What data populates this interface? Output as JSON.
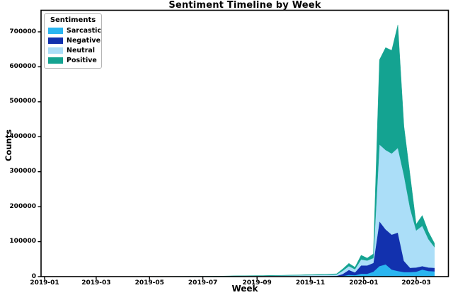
{
  "chart_data": {
    "type": "area",
    "stacked": true,
    "title": "Sentiment Timeline by Week",
    "xlabel": "Week",
    "ylabel": "Counts",
    "legend_title": "Sentiments",
    "legend_position": "upper left",
    "grid": false,
    "ylim": [
      0,
      760000
    ],
    "ytick_values": [
      0,
      100000,
      200000,
      300000,
      400000,
      500000,
      600000,
      700000
    ],
    "ytick_labels": [
      "0",
      "100000",
      "200000",
      "300000",
      "400000",
      "500000",
      "600000",
      "700000"
    ],
    "xtick_labels": [
      "2019-01",
      "2019-03",
      "2019-05",
      "2019-07",
      "2019-09",
      "2019-11",
      "2020-01",
      "2020-03"
    ],
    "weeks": [
      "2019-01-06",
      "2019-01-13",
      "2019-01-20",
      "2019-01-27",
      "2019-02-03",
      "2019-02-10",
      "2019-02-17",
      "2019-02-24",
      "2019-03-03",
      "2019-03-10",
      "2019-03-17",
      "2019-03-24",
      "2019-03-31",
      "2019-04-07",
      "2019-04-14",
      "2019-04-21",
      "2019-04-28",
      "2019-05-05",
      "2019-05-12",
      "2019-05-19",
      "2019-05-26",
      "2019-06-02",
      "2019-06-09",
      "2019-06-16",
      "2019-06-23",
      "2019-06-30",
      "2019-07-07",
      "2019-07-14",
      "2019-07-21",
      "2019-07-28",
      "2019-08-04",
      "2019-08-11",
      "2019-08-18",
      "2019-08-25",
      "2019-09-01",
      "2019-09-08",
      "2019-09-15",
      "2019-09-22",
      "2019-09-29",
      "2019-10-06",
      "2019-10-13",
      "2019-10-20",
      "2019-10-27",
      "2019-11-03",
      "2019-11-10",
      "2019-11-17",
      "2019-11-24",
      "2019-12-01",
      "2019-12-08",
      "2019-12-15",
      "2019-12-22",
      "2019-12-29",
      "2020-01-05",
      "2020-01-12",
      "2020-01-19",
      "2020-01-26",
      "2020-02-02",
      "2020-02-09",
      "2020-02-16",
      "2020-02-23",
      "2020-03-01",
      "2020-03-08",
      "2020-03-15",
      "2020-03-22"
    ],
    "series": [
      {
        "name": "Sarcastic",
        "color": "#2ab5f0",
        "values": [
          0,
          0,
          0,
          0,
          0,
          0,
          0,
          0,
          0,
          0,
          0,
          0,
          0,
          0,
          50,
          50,
          50,
          50,
          50,
          50,
          50,
          50,
          50,
          50,
          50,
          50,
          50,
          100,
          100,
          100,
          150,
          150,
          150,
          200,
          200,
          200,
          250,
          250,
          300,
          300,
          350,
          350,
          400,
          400,
          450,
          500,
          550,
          600,
          1500,
          5000,
          4000,
          8000,
          8000,
          14000,
          30000,
          35000,
          20000,
          16000,
          13000,
          13000,
          14000,
          20000,
          16000,
          15000
        ]
      },
      {
        "name": "Negative",
        "color": "#1231ae",
        "values": [
          0,
          0,
          0,
          0,
          50,
          50,
          50,
          50,
          50,
          50,
          50,
          50,
          50,
          50,
          50,
          50,
          50,
          100,
          100,
          100,
          100,
          100,
          100,
          100,
          150,
          150,
          150,
          200,
          250,
          300,
          350,
          400,
          400,
          450,
          500,
          500,
          550,
          600,
          650,
          700,
          750,
          800,
          900,
          1000,
          1100,
          1200,
          1300,
          1500,
          6000,
          14000,
          8000,
          24000,
          24000,
          25000,
          128000,
          100000,
          100000,
          110000,
          32000,
          12000,
          12000,
          10000,
          10000,
          10000
        ]
      },
      {
        "name": "Neutral",
        "color": "#abdef8",
        "values": [
          100,
          100,
          100,
          100,
          150,
          150,
          150,
          150,
          200,
          200,
          200,
          200,
          250,
          250,
          250,
          250,
          300,
          300,
          300,
          350,
          350,
          400,
          400,
          450,
          450,
          500,
          550,
          600,
          800,
          1000,
          1200,
          1300,
          1400,
          1500,
          1600,
          1700,
          1800,
          1900,
          2000,
          2200,
          2400,
          2600,
          2800,
          3000,
          3200,
          3400,
          3700,
          4000,
          9000,
          11000,
          9000,
          17000,
          14000,
          14000,
          220000,
          227000,
          232000,
          242000,
          245000,
          170000,
          106000,
          115000,
          81000,
          59000
        ]
      },
      {
        "name": "Positive",
        "color": "#14a391",
        "values": [
          0,
          0,
          50,
          50,
          50,
          50,
          50,
          50,
          50,
          100,
          100,
          100,
          100,
          100,
          100,
          100,
          100,
          100,
          100,
          100,
          150,
          150,
          150,
          150,
          200,
          200,
          250,
          300,
          350,
          400,
          500,
          550,
          550,
          600,
          700,
          700,
          800,
          850,
          900,
          1000,
          1100,
          1200,
          1300,
          1400,
          1500,
          1600,
          1800,
          2000,
          5500,
          8000,
          6000,
          12000,
          7000,
          12000,
          242000,
          293000,
          295000,
          352000,
          140000,
          95000,
          18000,
          30000,
          21000,
          11000
        ]
      }
    ]
  }
}
